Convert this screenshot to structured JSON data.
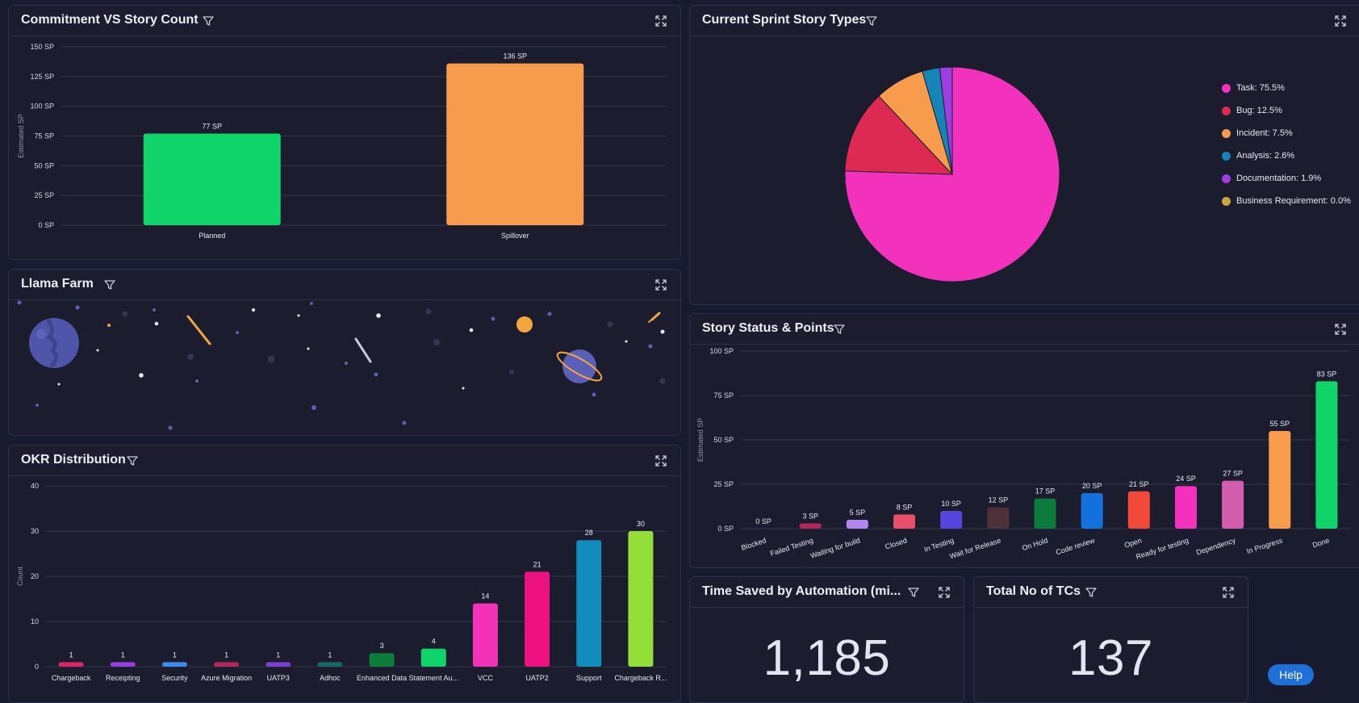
{
  "colors": {
    "background": "#181b2e",
    "card": "#1b1d2f",
    "border": "#2e3149",
    "help_button": "#1f6fd9"
  },
  "icons": {
    "filter": "filter-icon",
    "expand": "expand-icon"
  },
  "commitment": {
    "title": "Commitment VS Story Count",
    "chart_data": {
      "type": "bar",
      "title": "Commitment VS Story Count",
      "categories": [
        "Planned",
        "Spillover"
      ],
      "values": [
        77,
        136
      ],
      "value_labels": [
        "77 SP",
        "136 SP"
      ],
      "colors": [
        "#10d46a",
        "#f69c4c"
      ],
      "ylabel": "Estimated SP",
      "ylim": [
        0,
        150
      ],
      "yticks": [
        0,
        25,
        50,
        75,
        100,
        125,
        150
      ],
      "ytick_labels": [
        "0 SP",
        "25 SP",
        "50 SP",
        "75 SP",
        "100 SP",
        "125 SP",
        "150 SP"
      ],
      "grid": true
    }
  },
  "llama": {
    "title": "Llama Farm"
  },
  "okr": {
    "title": "OKR Distribution",
    "chart_data": {
      "type": "bar",
      "title": "OKR Distribution",
      "categories": [
        "Chargeback",
        "Receipting",
        "Security",
        "Azure Migration",
        "UATP3",
        "Adhoc",
        "Enhanced Data",
        "Statement Au...",
        "VCC",
        "UATP2",
        "Support",
        "Chargeback R..."
      ],
      "values": [
        1,
        1,
        1,
        1,
        1,
        1,
        3,
        4,
        14,
        21,
        28,
        30
      ],
      "value_labels": [
        "1",
        "1",
        "1",
        "1",
        "1",
        "1",
        "3",
        "4",
        "14",
        "21",
        "28",
        "30"
      ],
      "colors": [
        "#d92660",
        "#9440dd",
        "#3d8bec",
        "#b3275a",
        "#7a3fd0",
        "#166a63",
        "#0b7c3a",
        "#10d46a",
        "#f233b8",
        "#ee1281",
        "#128bbd",
        "#94de3a"
      ],
      "ylabel": "Count",
      "ylim": [
        0,
        40
      ],
      "yticks": [
        0,
        10,
        20,
        30,
        40
      ],
      "ytick_labels": [
        "0",
        "10",
        "20",
        "30",
        "40"
      ],
      "grid": true
    }
  },
  "sprint_types": {
    "title": "Current Sprint Story Types",
    "chart_data": {
      "type": "pie",
      "title": "Current Sprint Story Types",
      "labels": [
        "Task",
        "Bug",
        "Incident",
        "Analysis",
        "Documentation",
        "Business Requirement"
      ],
      "values": [
        75.5,
        12.5,
        7.5,
        2.6,
        1.9,
        0.0
      ],
      "legend_labels": [
        "Task: 75.5%",
        "Bug: 12.5%",
        "Incident: 7.5%",
        "Analysis: 2.6%",
        "Documentation: 1.9%",
        "Business Requirement: 0.0%"
      ],
      "colors": [
        "#f232bd",
        "#dc2a52",
        "#f69c4c",
        "#1684b7",
        "#9c3ee0",
        "#c9a63e"
      ],
      "legend_position": "right"
    }
  },
  "status": {
    "title": "Story Status & Points",
    "chart_data": {
      "type": "bar",
      "title": "Story Status & Points",
      "categories": [
        "Blocked",
        "Failed Testing",
        "Waiting for build",
        "Closed",
        "In Testing",
        "Wait for Release",
        "On Hold",
        "Code review",
        "Open",
        "Ready for testing",
        "Dependency",
        "In Progress",
        "Done"
      ],
      "values": [
        0,
        3,
        5,
        8,
        10,
        12,
        17,
        20,
        21,
        24,
        27,
        55,
        83
      ],
      "value_labels": [
        "0 SP",
        "3 SP",
        "5 SP",
        "8 SP",
        "10 SP",
        "12 SP",
        "17 SP",
        "20 SP",
        "21 SP",
        "24 SP",
        "27 SP",
        "55 SP",
        "83 SP"
      ],
      "colors": [
        "#2a7d86",
        "#b3275a",
        "#b286f0",
        "#e8506a",
        "#5744dc",
        "#4d3038",
        "#0b7c3a",
        "#1271dc",
        "#f24a3a",
        "#f232bd",
        "#d25dad",
        "#f69c4c",
        "#10d46a"
      ],
      "ylabel": "Estimated SP",
      "ylim": [
        0,
        100
      ],
      "yticks": [
        0,
        25,
        50,
        75,
        100
      ],
      "ytick_labels": [
        "0 SP",
        "25 SP",
        "50 SP",
        "75 SP",
        "100 SP"
      ],
      "grid": true
    }
  },
  "time_saved": {
    "title": "Time Saved by Automation (mi...",
    "value": "1,185"
  },
  "total_tcs": {
    "title": "Total No of TCs",
    "value": "137"
  },
  "help": {
    "label": "Help"
  }
}
